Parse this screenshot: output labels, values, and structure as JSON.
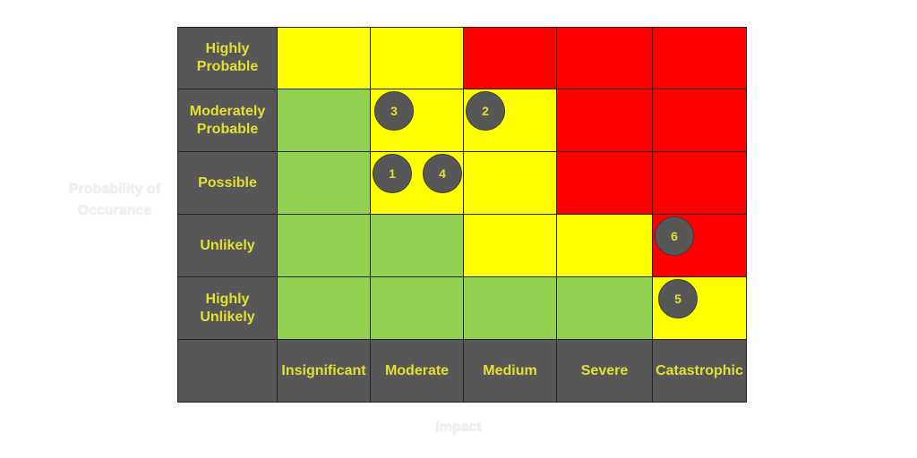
{
  "chart_data": {
    "type": "heatmap",
    "title": "",
    "xlabel": "Impact",
    "ylabel": "Probability of Occurance",
    "x_categories": [
      "Insignificant",
      "Moderate",
      "Medium",
      "Severe",
      "Catastrophic"
    ],
    "y_categories": [
      "Highly Probable",
      "Moderately Probable",
      "Possible",
      "Unlikely",
      "Highly Unlikely"
    ],
    "levels": [
      [
        "med",
        "med",
        "high",
        "high",
        "high"
      ],
      [
        "low",
        "med",
        "med",
        "high",
        "high"
      ],
      [
        "low",
        "med",
        "med",
        "high",
        "high"
      ],
      [
        "low",
        "low",
        "med",
        "med",
        "high"
      ],
      [
        "low",
        "low",
        "low",
        "low",
        "med"
      ]
    ],
    "level_colors": {
      "low": "#92d050",
      "med": "#ffff00",
      "high": "#ff0000"
    },
    "header_color": "#575757",
    "header_text_color": "#e2e032",
    "points": [
      {
        "label": "1",
        "impact": "Moderate",
        "probability": "Possible"
      },
      {
        "label": "2",
        "impact": "Medium",
        "probability": "Moderately Probable"
      },
      {
        "label": "3",
        "impact": "Moderate",
        "probability": "Moderately Probable"
      },
      {
        "label": "4",
        "impact": "Moderate",
        "probability": "Possible"
      },
      {
        "label": "5",
        "impact": "Catastrophic",
        "probability": "Highly Unlikely"
      },
      {
        "label": "6",
        "impact": "Catastrophic",
        "probability": "Unlikely"
      }
    ]
  }
}
